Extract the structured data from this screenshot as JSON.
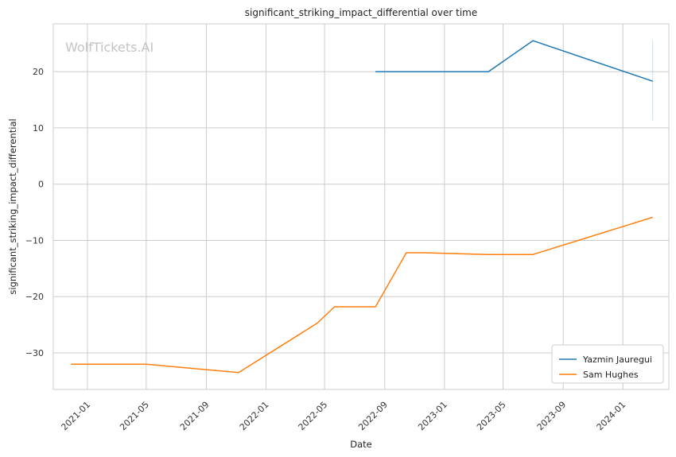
{
  "chart_data": {
    "type": "line",
    "title": "significant_striking_impact_differential over time",
    "xlabel": "Date",
    "ylabel": "significant_striking_impact_differential",
    "watermark": "WolfTickets.AI",
    "x_ticks": [
      "2021-01",
      "2021-05",
      "2021-09",
      "2022-01",
      "2022-05",
      "2022-09",
      "2023-01",
      "2023-05",
      "2023-09",
      "2024-01"
    ],
    "y_ticks": [
      -30,
      -20,
      -10,
      0,
      10,
      20
    ],
    "xlim": [
      "2020-10-23",
      "2024-04-04"
    ],
    "ylim": [
      -36.5,
      28.5
    ],
    "grid": true,
    "legend_position": "bottom-right",
    "series": [
      {
        "name": "Yazmin Jauregui",
        "color": "#1f77b4",
        "points": [
          {
            "x": "2022-08-13",
            "y": 20.0
          },
          {
            "x": "2023-04-01",
            "y": 20.0
          },
          {
            "x": "2023-07-01",
            "y": 25.5
          },
          {
            "x": "2024-03-02",
            "y": 18.3
          }
        ],
        "error_bar": {
          "x": "2024-03-02",
          "low": 11.3,
          "high": 25.5
        }
      },
      {
        "name": "Sam Hughes",
        "color": "#ff7f0e",
        "points": [
          {
            "x": "2020-11-28",
            "y": -32.0
          },
          {
            "x": "2021-05-01",
            "y": -32.0
          },
          {
            "x": "2021-11-06",
            "y": -33.5
          },
          {
            "x": "2022-04-16",
            "y": -24.7
          },
          {
            "x": "2022-05-21",
            "y": -21.8
          },
          {
            "x": "2022-08-13",
            "y": -21.8
          },
          {
            "x": "2022-10-15",
            "y": -12.2
          },
          {
            "x": "2022-11-19",
            "y": -12.2
          },
          {
            "x": "2023-04-01",
            "y": -12.5
          },
          {
            "x": "2023-07-01",
            "y": -12.5
          },
          {
            "x": "2024-03-02",
            "y": -5.9
          }
        ]
      }
    ]
  }
}
